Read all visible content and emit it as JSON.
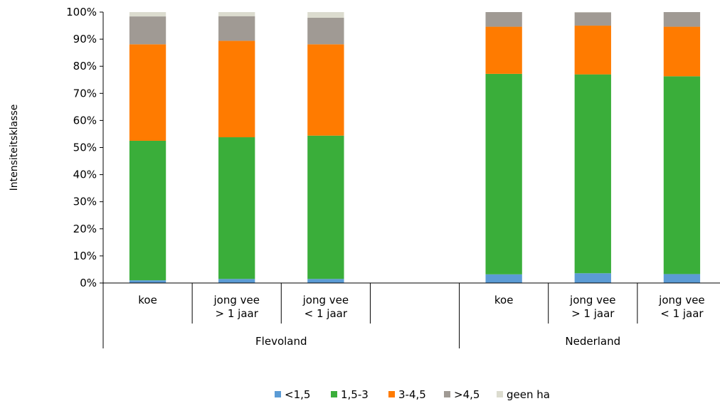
{
  "chart_data": {
    "type": "bar",
    "stacked": true,
    "ylabel": "Intensiteitsklasse",
    "yticks": [
      "0%",
      "10%",
      "20%",
      "30%",
      "40%",
      "50%",
      "60%",
      "70%",
      "80%",
      "90%",
      "100%"
    ],
    "ylim": [
      0,
      100
    ],
    "grid": false,
    "legend_position": "bottom",
    "groups": [
      {
        "name": "Flevoland",
        "categories": [
          {
            "lines": [
              "koe"
            ]
          },
          {
            "lines": [
              "jong vee",
              "> 1 jaar"
            ]
          },
          {
            "lines": [
              "jong vee",
              "< 1 jaar"
            ]
          },
          {
            "lines": []
          }
        ]
      },
      {
        "name": "Nederland",
        "categories": [
          {
            "lines": [
              "koe"
            ]
          },
          {
            "lines": [
              "jong vee",
              "> 1 jaar"
            ]
          },
          {
            "lines": [
              "jong vee",
              "< 1 jaar"
            ]
          }
        ]
      }
    ],
    "series": [
      {
        "name": "<1,5",
        "color": "#5b9bd5",
        "values": [
          1.0,
          1.5,
          1.5,
          null,
          3.2,
          3.6,
          3.3
        ]
      },
      {
        "name": "1,5-3",
        "color": "#3aae3a",
        "values": [
          51.5,
          52.3,
          52.9,
          null,
          74.0,
          73.4,
          73.0
        ]
      },
      {
        "name": "3-4,5",
        "color": "#ff7b00",
        "values": [
          35.6,
          35.6,
          33.7,
          null,
          17.4,
          18.0,
          18.3
        ]
      },
      {
        "name": ">4,5",
        "color": "#a09a94",
        "values": [
          10.3,
          9.1,
          9.8,
          null,
          5.4,
          4.9,
          5.4
        ]
      },
      {
        "name": "geen ha",
        "color": "#dcdccf",
        "values": [
          1.6,
          1.5,
          2.1,
          null,
          0.0,
          0.1,
          0.0
        ]
      }
    ]
  }
}
